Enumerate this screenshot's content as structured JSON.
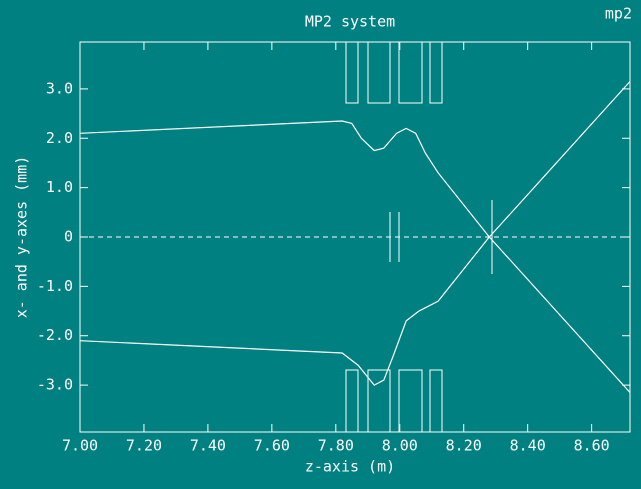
{
  "chart_data": {
    "type": "line",
    "title": "MP2 system",
    "tag": "mp2",
    "x_label": "z-axis (m)",
    "y_label": "x- and y-axes (mm)",
    "xlim": [
      7.0,
      8.72
    ],
    "ylim": [
      -3.95,
      3.95
    ],
    "xticks": [
      {
        "value": 7.0,
        "label": "7.00"
      },
      {
        "value": 7.2,
        "label": "7.20"
      },
      {
        "value": 7.4,
        "label": "7.40"
      },
      {
        "value": 7.6,
        "label": "7.60"
      },
      {
        "value": 7.8,
        "label": "7.80"
      },
      {
        "value": 8.0,
        "label": "8.00"
      },
      {
        "value": 8.2,
        "label": "8.20"
      },
      {
        "value": 8.4,
        "label": "8.40"
      },
      {
        "value": 8.6,
        "label": "8.60"
      }
    ],
    "yticks": [
      {
        "value": 3,
        "label": "3.0"
      },
      {
        "value": 2,
        "label": "2.0"
      },
      {
        "value": 1,
        "label": "1.0"
      },
      0,
      {
        "value": -1,
        "label": "-1.0"
      },
      {
        "value": -2,
        "label": "-2.0"
      },
      {
        "value": -3,
        "label": "-3.0"
      }
    ],
    "series": [
      {
        "color": "#ffffff",
        "x": [
          7.0,
          7.82,
          7.85,
          7.88,
          7.92,
          7.95,
          7.99,
          8.02,
          8.05,
          8.08,
          8.12,
          8.28,
          8.72
        ],
        "values": [
          2.1,
          2.35,
          2.3,
          2.0,
          1.75,
          1.8,
          2.1,
          2.2,
          2.1,
          1.7,
          1.3,
          0,
          -3.15
        ]
      },
      {
        "color": "#ffffff",
        "x": [
          7.0,
          7.82,
          7.87,
          7.92,
          7.95,
          7.98,
          8.02,
          8.06,
          8.12,
          8.28,
          8.72
        ],
        "values": [
          -2.1,
          -2.35,
          -2.6,
          -3.0,
          -2.9,
          -2.4,
          -1.7,
          -1.5,
          -1.3,
          0,
          3.15
        ]
      }
    ]
  }
}
